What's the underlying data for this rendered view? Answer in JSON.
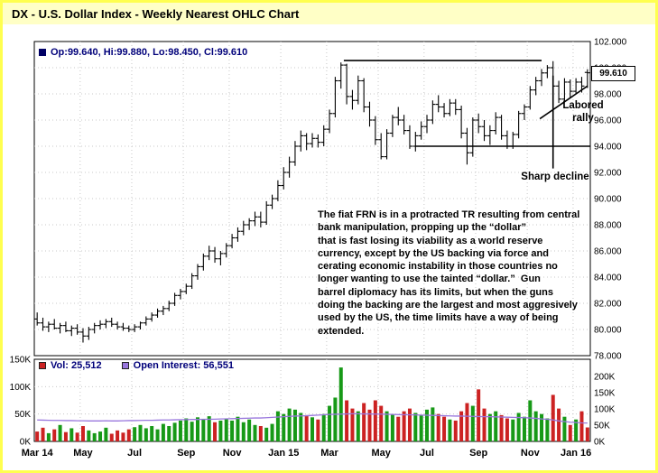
{
  "title": "DX - U.S. Dollar Index - Weekly Nearest OHLC Chart",
  "price_legend": {
    "label": "Op:99.640, Hi:99.880, Lo:98.450, Cl:99.610"
  },
  "volume_legend": {
    "vol": "Vol: 25,512",
    "oi": "Open Interest: 56,551"
  },
  "last_price_box": "99.610",
  "annotations": {
    "labored_rally": "Labored rally",
    "sharp_decline": "Sharp decline",
    "commentary": "The fiat FRN is in a protracted TR resulting from central\nbank manipulation, propping up the “dollar”\nthat is fast losing its viability as a world reserve\ncurrency, except by the US backing via force and\ncerating economic instability in those countries no\nlonger wanting to use the tainted “dollar.”  Gun\nbarrel diplomacy has its limits, but when the guns\ndoing the backing are the largest and most aggresively\nused by the US, the time limits have a way of being\nextended."
  },
  "colors": {
    "accent_border": "#ffff4f",
    "title_bg": "#ffffc6",
    "bar_color": "#000000",
    "volume_up": "#179917",
    "volume_down": "#cc2222",
    "open_interest": "#9977dd",
    "legend_text": "#00007a",
    "grid": "#c8c8c8"
  },
  "chart_data": {
    "type": "bar",
    "subtype": "ohlc-with-volume",
    "title": "DX - U.S. Dollar Index - Weekly Nearest OHLC Chart",
    "x_ticks": {
      "labels": [
        "Mar 14",
        "May",
        "Jul",
        "Sep",
        "Nov",
        "Jan 15",
        "Mar",
        "May",
        "Jul",
        "Sep",
        "Nov",
        "Jan 16"
      ],
      "indices": [
        0,
        8,
        17,
        26,
        34,
        43,
        51,
        60,
        68,
        77,
        86,
        94
      ]
    },
    "price": {
      "ylim": [
        78,
        102
      ],
      "tick_values": [
        102,
        100,
        98,
        96,
        94,
        92,
        90,
        88,
        86,
        84,
        82,
        80,
        78
      ],
      "tick_labels": [
        "102.000",
        "100.000",
        "98.000",
        "96.000",
        "94.000",
        "92.000",
        "90.000",
        "88.000",
        "86.000",
        "84.000",
        "82.000",
        "80.000",
        "78.000"
      ],
      "last_bar": {
        "open": 99.64,
        "high": 99.88,
        "low": 98.45,
        "close": 99.61
      },
      "bars": [
        [
          80.8,
          81.3,
          80.3,
          80.5
        ],
        [
          80.5,
          80.9,
          79.9,
          80.2
        ],
        [
          80.2,
          80.6,
          79.8,
          80.4
        ],
        [
          80.4,
          80.8,
          80.0,
          80.1
        ],
        [
          80.1,
          80.5,
          79.7,
          80.3
        ],
        [
          80.3,
          80.6,
          79.8,
          79.9
        ],
        [
          79.9,
          80.3,
          79.5,
          80.1
        ],
        [
          80.1,
          80.4,
          79.6,
          79.8
        ],
        [
          79.8,
          80.1,
          79.0,
          79.5
        ],
        [
          79.5,
          80.2,
          79.2,
          80.0
        ],
        [
          80.0,
          80.5,
          79.7,
          80.3
        ],
        [
          80.3,
          80.7,
          80.0,
          80.4
        ],
        [
          80.4,
          80.8,
          80.1,
          80.6
        ],
        [
          80.6,
          80.9,
          80.2,
          80.4
        ],
        [
          80.4,
          80.6,
          80.0,
          80.2
        ],
        [
          80.2,
          80.5,
          79.9,
          80.1
        ],
        [
          80.1,
          80.3,
          79.8,
          80.0
        ],
        [
          80.0,
          80.4,
          79.8,
          80.2
        ],
        [
          80.2,
          80.6,
          80.0,
          80.5
        ],
        [
          80.5,
          81.0,
          80.3,
          80.8
        ],
        [
          80.8,
          81.3,
          80.6,
          81.1
        ],
        [
          81.1,
          81.6,
          80.9,
          81.4
        ],
        [
          81.4,
          81.8,
          81.1,
          81.6
        ],
        [
          81.6,
          82.2,
          81.4,
          82.0
        ],
        [
          82.0,
          82.8,
          81.8,
          82.6
        ],
        [
          82.6,
          83.1,
          82.3,
          82.9
        ],
        [
          82.9,
          83.5,
          82.7,
          83.3
        ],
        [
          83.3,
          84.3,
          83.1,
          84.1
        ],
        [
          84.1,
          85.0,
          83.8,
          84.8
        ],
        [
          84.8,
          85.8,
          84.5,
          85.6
        ],
        [
          85.6,
          86.4,
          85.3,
          86.0
        ],
        [
          86.0,
          86.3,
          85.1,
          85.4
        ],
        [
          85.4,
          86.0,
          84.9,
          85.8
        ],
        [
          85.8,
          86.6,
          85.5,
          86.4
        ],
        [
          86.4,
          87.3,
          86.2,
          87.0
        ],
        [
          87.0,
          87.8,
          86.7,
          87.5
        ],
        [
          87.5,
          88.3,
          87.2,
          88.0
        ],
        [
          88.0,
          88.5,
          87.6,
          88.3
        ],
        [
          88.3,
          89.0,
          87.9,
          88.6
        ],
        [
          88.6,
          89.0,
          87.8,
          88.2
        ],
        [
          88.2,
          89.8,
          88.0,
          89.5
        ],
        [
          89.5,
          90.3,
          89.2,
          90.0
        ],
        [
          90.0,
          91.4,
          89.8,
          91.0
        ],
        [
          91.0,
          92.4,
          90.7,
          92.0
        ],
        [
          92.0,
          93.2,
          91.6,
          92.8
        ],
        [
          92.8,
          94.4,
          92.5,
          94.0
        ],
        [
          94.0,
          95.2,
          93.6,
          94.8
        ],
        [
          94.8,
          95.0,
          93.7,
          94.2
        ],
        [
          94.2,
          95.0,
          93.9,
          94.6
        ],
        [
          94.6,
          94.9,
          93.9,
          94.3
        ],
        [
          94.3,
          95.6,
          94.0,
          95.3
        ],
        [
          95.3,
          96.8,
          95.0,
          96.5
        ],
        [
          96.5,
          99.3,
          96.2,
          99.0
        ],
        [
          99.0,
          100.4,
          98.4,
          100.2
        ],
        [
          100.2,
          100.3,
          97.2,
          97.8
        ],
        [
          97.8,
          98.3,
          96.8,
          97.5
        ],
        [
          97.5,
          99.4,
          97.2,
          99.0
        ],
        [
          99.0,
          99.2,
          96.6,
          97.0
        ],
        [
          97.0,
          97.4,
          95.5,
          96.0
        ],
        [
          96.0,
          96.3,
          94.1,
          94.5
        ],
        [
          94.5,
          95.0,
          93.0,
          93.2
        ],
        [
          93.2,
          95.3,
          93.0,
          95.0
        ],
        [
          95.0,
          96.4,
          94.7,
          96.2
        ],
        [
          96.2,
          97.0,
          95.6,
          96.0
        ],
        [
          96.0,
          96.4,
          94.9,
          95.2
        ],
        [
          95.2,
          95.6,
          93.8,
          94.0
        ],
        [
          94.0,
          95.1,
          93.6,
          94.8
        ],
        [
          94.8,
          95.9,
          94.5,
          95.5
        ],
        [
          95.5,
          96.4,
          95.0,
          96.0
        ],
        [
          96.0,
          97.5,
          95.7,
          97.2
        ],
        [
          97.2,
          97.9,
          96.6,
          97.0
        ],
        [
          97.0,
          97.3,
          96.2,
          96.5
        ],
        [
          96.5,
          97.6,
          96.3,
          97.3
        ],
        [
          97.3,
          97.6,
          96.4,
          96.8
        ],
        [
          96.8,
          97.1,
          94.6,
          95.0
        ],
        [
          95.0,
          95.4,
          92.6,
          93.5
        ],
        [
          93.5,
          96.2,
          93.2,
          96.0
        ],
        [
          96.0,
          96.5,
          95.0,
          95.5
        ],
        [
          95.5,
          96.0,
          94.4,
          94.8
        ],
        [
          94.8,
          95.6,
          94.1,
          95.2
        ],
        [
          95.2,
          96.6,
          94.9,
          96.2
        ],
        [
          96.2,
          96.4,
          94.5,
          94.8
        ],
        [
          94.8,
          95.2,
          93.8,
          94.0
        ],
        [
          94.0,
          95.1,
          93.8,
          94.9
        ],
        [
          94.9,
          96.7,
          94.6,
          96.5
        ],
        [
          96.5,
          97.2,
          96.0,
          97.0
        ],
        [
          97.0,
          98.6,
          96.8,
          98.3
        ],
        [
          98.3,
          99.3,
          97.9,
          99.0
        ],
        [
          99.0,
          99.9,
          98.6,
          99.6
        ],
        [
          99.6,
          100.2,
          99.2,
          100.0
        ],
        [
          100.0,
          100.5,
          97.2,
          98.6
        ],
        [
          98.6,
          99.0,
          97.3,
          97.6
        ],
        [
          97.6,
          99.2,
          97.4,
          98.9
        ],
        [
          98.9,
          99.1,
          97.7,
          98.2
        ],
        [
          98.2,
          99.2,
          98.0,
          98.9
        ],
        [
          98.9,
          99.3,
          98.1,
          98.6
        ],
        [
          99.64,
          99.88,
          98.45,
          99.61
        ]
      ]
    },
    "volume": {
      "left_axis": {
        "labels": [
          "150K",
          "100K",
          "50K",
          "0K"
        ],
        "values": [
          150,
          100,
          50,
          0
        ]
      },
      "right_axis": {
        "labels": [
          "200K",
          "150K",
          "100K",
          "50K",
          "0K"
        ],
        "values": [
          200,
          150,
          100,
          50,
          0
        ]
      },
      "last_volume": 25512,
      "last_open_interest": 56551,
      "values_k": [
        18,
        25,
        15,
        22,
        30,
        17,
        24,
        16,
        28,
        20,
        15,
        18,
        25,
        14,
        20,
        16,
        22,
        26,
        30,
        24,
        28,
        22,
        32,
        28,
        34,
        38,
        42,
        36,
        44,
        40,
        46,
        35,
        38,
        42,
        38,
        45,
        35,
        40,
        30,
        28,
        25,
        32,
        55,
        50,
        60,
        58,
        52,
        48,
        44,
        40,
        50,
        65,
        80,
        135,
        75,
        60,
        55,
        70,
        58,
        75,
        65,
        55,
        50,
        45,
        55,
        60,
        52,
        48,
        58,
        62,
        50,
        45,
        40,
        38,
        55,
        70,
        65,
        95,
        60,
        50,
        55,
        48,
        42,
        40,
        52,
        45,
        75,
        55,
        50,
        42,
        85,
        60,
        45,
        30,
        40,
        55,
        25.5
      ],
      "open_interest_k": [
        66,
        65.5,
        65,
        64.5,
        64.5,
        64,
        64,
        63.5,
        63.5,
        63,
        63,
        63,
        63.5,
        63,
        63,
        63.5,
        64,
        64,
        64.5,
        65,
        65,
        65.5,
        66,
        66,
        66.5,
        67,
        67,
        67.5,
        67.5,
        68,
        68,
        68.5,
        69,
        69.5,
        70,
        70.5,
        71,
        71.5,
        72,
        72,
        73,
        74,
        75,
        76,
        77,
        78,
        78.5,
        79,
        80,
        81,
        82,
        83,
        83.5,
        84,
        84.5,
        85,
        85,
        84.5,
        84.5,
        84,
        84,
        83.5,
        83,
        82.5,
        82,
        82,
        81.5,
        81,
        80.5,
        80,
        79.5,
        79,
        78.5,
        78,
        78,
        77.5,
        77,
        76.5,
        76,
        76,
        75.5,
        75,
        74.5,
        74,
        73.5,
        73,
        72,
        71,
        69,
        68,
        66,
        63,
        61,
        59,
        58,
        57,
        56.5
      ]
    },
    "trendlines": [
      {
        "name": "resistance-line",
        "from_idx": 53.5,
        "from_price": 100.55,
        "to_idx": 88.0,
        "to_price": 100.55
      },
      {
        "name": "support-line",
        "from_idx": 66.0,
        "from_price": 94.0,
        "to_idx": 96.5,
        "to_price": 94.0
      },
      {
        "name": "sharp-decline-marker",
        "from_idx": 90.0,
        "from_price": 99.4,
        "to_idx": 90.0,
        "to_price": 92.3
      },
      {
        "name": "labored-rally-trendline",
        "from_idx": 87.7,
        "from_price": 96.1,
        "to_idx": 96.0,
        "to_price": 98.6
      }
    ]
  }
}
